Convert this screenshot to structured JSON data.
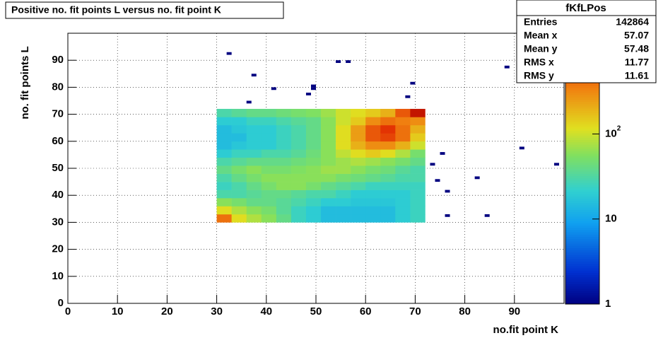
{
  "chart_data": {
    "type": "heatmap",
    "title": "Positive no. fit points L versus no. fit point K",
    "xlabel": "no.fit point K",
    "ylabel": "no. fit points  L",
    "xlim": [
      0,
      100
    ],
    "ylim": [
      0,
      100
    ],
    "xticks": [
      0,
      10,
      20,
      30,
      40,
      50,
      60,
      70,
      80,
      90
    ],
    "yticks": [
      0,
      10,
      20,
      30,
      40,
      50,
      60,
      70,
      80,
      90
    ],
    "grid": true,
    "zscale": "log",
    "zlim": [
      1,
      1500
    ],
    "zticks": [
      1,
      10,
      {
        "value": 100,
        "label": "10",
        "exponent": "2"
      }
    ],
    "x": [
      30,
      33,
      36,
      39,
      42,
      45,
      48,
      51,
      54,
      57,
      60,
      63,
      66,
      69,
      72
    ],
    "y": [
      30,
      33,
      36,
      39,
      42,
      45,
      48,
      51,
      54,
      57,
      60,
      63,
      66,
      69,
      72
    ],
    "z": [
      [
        400,
        120,
        80,
        60,
        40,
        25,
        20,
        15,
        15,
        15,
        15,
        15,
        20,
        25
      ],
      [
        120,
        80,
        60,
        50,
        35,
        25,
        20,
        15,
        15,
        15,
        15,
        15,
        20,
        25
      ],
      [
        60,
        50,
        40,
        40,
        35,
        30,
        25,
        20,
        20,
        18,
        18,
        18,
        20,
        25
      ],
      [
        30,
        30,
        35,
        40,
        40,
        35,
        30,
        30,
        25,
        20,
        20,
        20,
        20,
        25
      ],
      [
        25,
        30,
        40,
        50,
        60,
        60,
        50,
        40,
        35,
        30,
        25,
        25,
        25,
        25
      ],
      [
        30,
        40,
        50,
        60,
        60,
        60,
        60,
        60,
        50,
        45,
        40,
        35,
        30,
        30
      ],
      [
        40,
        50,
        60,
        50,
        50,
        55,
        60,
        70,
        70,
        60,
        50,
        45,
        35,
        30
      ],
      [
        30,
        35,
        40,
        40,
        40,
        45,
        50,
        60,
        70,
        80,
        70,
        60,
        50,
        40
      ],
      [
        20,
        25,
        25,
        30,
        30,
        35,
        45,
        60,
        90,
        120,
        150,
        120,
        80,
        50
      ],
      [
        15,
        18,
        20,
        20,
        25,
        30,
        40,
        60,
        120,
        200,
        300,
        300,
        200,
        100
      ],
      [
        15,
        15,
        20,
        20,
        25,
        30,
        40,
        60,
        120,
        250,
        500,
        600,
        400,
        150
      ],
      [
        15,
        18,
        20,
        20,
        25,
        30,
        40,
        60,
        120,
        250,
        500,
        700,
        400,
        200
      ],
      [
        20,
        20,
        25,
        25,
        30,
        35,
        40,
        60,
        100,
        150,
        300,
        400,
        350,
        300
      ],
      [
        30,
        35,
        40,
        40,
        45,
        50,
        55,
        70,
        100,
        120,
        150,
        200,
        500,
        1000
      ]
    ],
    "points": {
      "x": [
        32,
        37,
        41,
        36,
        48,
        49,
        49,
        54,
        56,
        69,
        68,
        88,
        73,
        75,
        74,
        76,
        82,
        91,
        98,
        76,
        84
      ],
      "y": [
        92,
        84,
        79,
        74,
        77,
        80,
        79,
        89,
        89,
        81,
        76,
        87,
        51,
        55,
        45,
        41,
        46,
        57,
        51,
        32,
        32
      ],
      "counts": [
        1,
        1,
        1,
        1,
        1,
        1,
        1,
        1,
        1,
        1,
        1,
        1,
        1,
        1,
        1,
        1,
        1,
        1,
        1,
        1,
        1
      ]
    },
    "stats": {
      "title": "fKfLPos",
      "rows": [
        {
          "label": "Entries",
          "value": 142864
        },
        {
          "label": "Mean x",
          "value": 57.07
        },
        {
          "label": "Mean y",
          "value": 57.48
        },
        {
          "label": "RMS x",
          "value": 11.77
        },
        {
          "label": "RMS y",
          "value": 11.61
        }
      ]
    }
  }
}
